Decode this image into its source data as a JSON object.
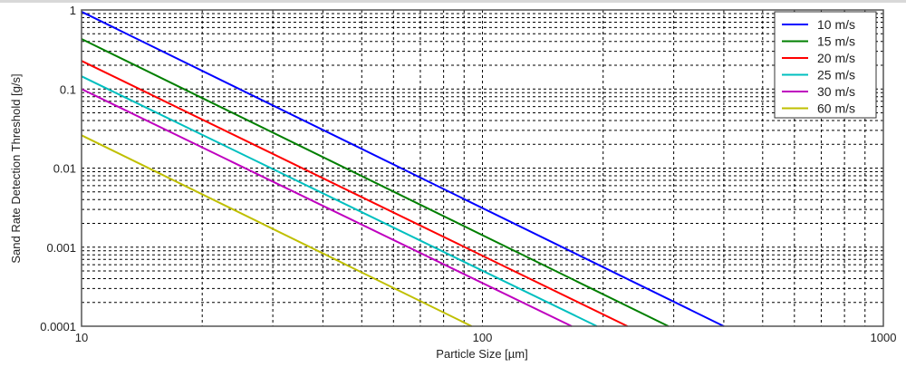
{
  "chart_data": {
    "type": "line",
    "title": "",
    "xlabel": "Particle Size [µm]",
    "ylabel": "Sand Rate Detection Threshold [g/s]",
    "xscale": "log",
    "yscale": "log",
    "xlim": [
      10,
      1000
    ],
    "ylim": [
      0.0001,
      1
    ],
    "xticks": [
      "10",
      "100",
      "1000"
    ],
    "yticks": [
      "0.0001",
      "0.001",
      "0.01",
      "0.1",
      "1"
    ],
    "grid": true,
    "legend_position": "top-right",
    "series": [
      {
        "name": "10 m/s",
        "color": "#0000ff",
        "x": [
          10,
          400
        ],
        "y": [
          0.95,
          0.0001
        ]
      },
      {
        "name": "15 m/s",
        "color": "#007f00",
        "x": [
          10,
          291
        ],
        "y": [
          0.43,
          0.0001
        ]
      },
      {
        "name": "20 m/s",
        "color": "#ff0000",
        "x": [
          10,
          230
        ],
        "y": [
          0.227,
          0.0001
        ]
      },
      {
        "name": "25 m/s",
        "color": "#00bfbf",
        "x": [
          10,
          193
        ],
        "y": [
          0.145,
          0.0001
        ]
      },
      {
        "name": "30 m/s",
        "color": "#bf00bf",
        "x": [
          10,
          167
        ],
        "y": [
          0.1,
          0.0001
        ]
      },
      {
        "name": "60 m/s",
        "color": "#bfbf00",
        "x": [
          10,
          94
        ],
        "y": [
          0.026,
          0.0001
        ]
      }
    ]
  }
}
